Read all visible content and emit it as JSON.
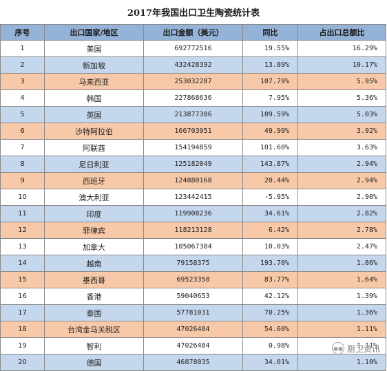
{
  "title": "2017年我国出口卫生陶瓷统计表",
  "headers": [
    "序号",
    "出口国家/地区",
    "出口金额（美元）",
    "同比",
    "占出口总额比"
  ],
  "rows": [
    {
      "seq": "1",
      "country": "美国",
      "amount": "692772516",
      "yoy": "19.55%",
      "share": "16.29%",
      "band": "white"
    },
    {
      "seq": "2",
      "country": "新加坡",
      "amount": "432428392",
      "yoy": "13.89%",
      "share": "10.17%",
      "band": "blue"
    },
    {
      "seq": "3",
      "country": "马来西亚",
      "amount": "253032287",
      "yoy": "107.79%",
      "share": "5.95%",
      "band": "peach"
    },
    {
      "seq": "4",
      "country": "韩国",
      "amount": "227868636",
      "yoy": "7.95%",
      "share": "5.36%",
      "band": "white"
    },
    {
      "seq": "5",
      "country": "英国",
      "amount": "213877306",
      "yoy": "109.59%",
      "share": "5.03%",
      "band": "blue"
    },
    {
      "seq": "6",
      "country": "沙特阿拉伯",
      "amount": "166703951",
      "yoy": "49.99%",
      "share": "3.92%",
      "band": "peach"
    },
    {
      "seq": "7",
      "country": "阿联酋",
      "amount": "154194859",
      "yoy": "101.60%",
      "share": "3.63%",
      "band": "white"
    },
    {
      "seq": "8",
      "country": "尼日利亚",
      "amount": "125182049",
      "yoy": "143.87%",
      "share": "2.94%",
      "band": "blue"
    },
    {
      "seq": "9",
      "country": "西班牙",
      "amount": "124880168",
      "yoy": "20.44%",
      "share": "2.94%",
      "band": "peach"
    },
    {
      "seq": "10",
      "country": "澳大利亚",
      "amount": "123442415",
      "yoy": "-5.95%",
      "share": "2.90%",
      "band": "white"
    },
    {
      "seq": "11",
      "country": "印度",
      "amount": "119908236",
      "yoy": "34.61%",
      "share": "2.82%",
      "band": "blue"
    },
    {
      "seq": "12",
      "country": "菲律宾",
      "amount": "118213128",
      "yoy": "6.42%",
      "share": "2.78%",
      "band": "peach"
    },
    {
      "seq": "13",
      "country": "加拿大",
      "amount": "105067384",
      "yoy": "10.03%",
      "share": "2.47%",
      "band": "white"
    },
    {
      "seq": "14",
      "country": "越南",
      "amount": "79158375",
      "yoy": "193.70%",
      "share": "1.86%",
      "band": "blue"
    },
    {
      "seq": "15",
      "country": "墨西哥",
      "amount": "69523358",
      "yoy": "83.77%",
      "share": "1.64%",
      "band": "peach"
    },
    {
      "seq": "16",
      "country": "香港",
      "amount": "59040653",
      "yoy": "42.12%",
      "share": "1.39%",
      "band": "white"
    },
    {
      "seq": "17",
      "country": "泰国",
      "amount": "57781031",
      "yoy": "70.25%",
      "share": "1.36%",
      "band": "blue"
    },
    {
      "seq": "18",
      "country": "台湾金马关税区",
      "amount": "47026484",
      "yoy": "54.60%",
      "share": "1.11%",
      "band": "peach"
    },
    {
      "seq": "19",
      "country": "智利",
      "amount": "47026484",
      "yoy": "0.98%",
      "share": "1.11%",
      "band": "white"
    },
    {
      "seq": "20",
      "country": "德国",
      "amount": "46878035",
      "yoy": "34.01%",
      "share": "1.10%",
      "band": "blue"
    }
  ],
  "watermark": {
    "icon": "wechat-icon",
    "text": "厨卫资讯"
  },
  "colors": {
    "header": "#95b3d7",
    "blue": "#c5d7ed",
    "peach": "#f8c9a8",
    "white": "#ffffff"
  }
}
